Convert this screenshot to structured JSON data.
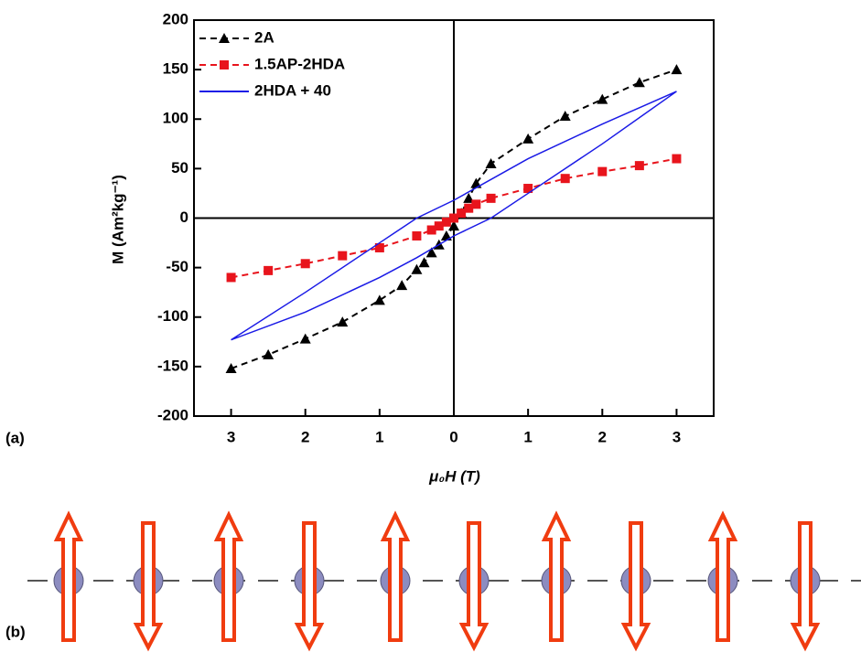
{
  "chart_data": {
    "type": "line",
    "y_label": "M (Am²kg⁻¹)",
    "x_label": "μ₀H (T)",
    "xlim": [
      -3.5,
      3.5
    ],
    "ylim": [
      -200,
      200
    ],
    "xticks": [
      {
        "value": -3,
        "label": "3"
      },
      {
        "value": -2,
        "label": "2"
      },
      {
        "value": -1,
        "label": "1"
      },
      0,
      1,
      2,
      3
    ],
    "yticks": [
      -200,
      -150,
      -100,
      -50,
      0,
      50,
      100,
      150,
      200
    ],
    "legend": "upper left",
    "series": [
      {
        "name": "2A",
        "color": "#000000",
        "marker": "triangle",
        "dashed": true,
        "x": [
          -3,
          -2.5,
          -2,
          -1.5,
          -1,
          -0.7,
          -0.5,
          -0.4,
          -0.3,
          -0.2,
          -0.1,
          0,
          0.1,
          0.2,
          0.3,
          0.5,
          1,
          1.5,
          2,
          2.5,
          3
        ],
        "values": [
          -152,
          -138,
          -122,
          -105,
          -83,
          -68,
          -52,
          -45,
          -35,
          -27,
          -18,
          -8,
          5,
          20,
          35,
          55,
          80,
          103,
          120,
          137,
          150
        ]
      },
      {
        "name": "1.5AP-2HDA",
        "color": "#e8141c",
        "marker": "square",
        "dashed": true,
        "x": [
          -3,
          -2.5,
          -2,
          -1.5,
          -1,
          -0.5,
          -0.3,
          -0.2,
          -0.1,
          0,
          0.1,
          0.2,
          0.3,
          0.5,
          1,
          1.5,
          2,
          2.5,
          3
        ],
        "values": [
          -60,
          -53,
          -46,
          -38,
          -30,
          -18,
          -12,
          -8,
          -4,
          0,
          5,
          10,
          14,
          20,
          30,
          40,
          47,
          53,
          60
        ]
      },
      {
        "name": "2HDA + 40",
        "color": "#1a1ae6",
        "marker": null,
        "dashed": false,
        "x": [
          -3,
          -2,
          -1,
          -0.5,
          0,
          0.5,
          1,
          2,
          3,
          2,
          1,
          0,
          -0.5,
          -1,
          -2,
          -3
        ],
        "values": [
          -123,
          -95,
          -60,
          -40,
          -18,
          0,
          25,
          75,
          128,
          95,
          60,
          18,
          0,
          -25,
          -75,
          -123
        ]
      }
    ]
  },
  "panel_labels": [
    "(a)",
    "(b)"
  ]
}
